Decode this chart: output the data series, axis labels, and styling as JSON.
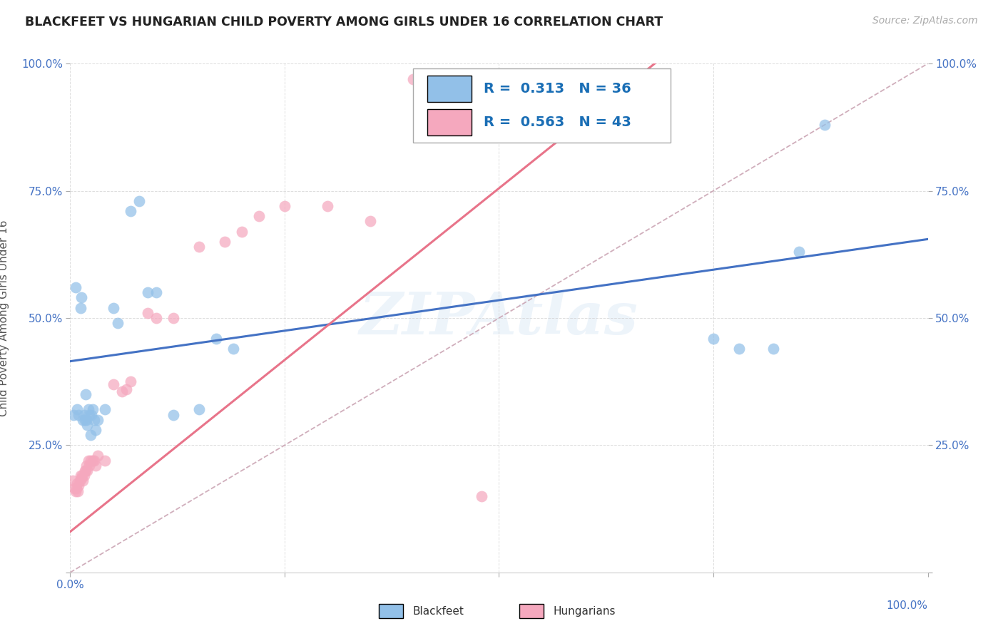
{
  "title": "BLACKFEET VS HUNGARIAN CHILD POVERTY AMONG GIRLS UNDER 16 CORRELATION CHART",
  "source": "Source: ZipAtlas.com",
  "ylabel": "Child Poverty Among Girls Under 16",
  "xlim": [
    0,
    1
  ],
  "ylim": [
    0,
    1
  ],
  "xticks": [
    0.0,
    0.25,
    0.5,
    0.75,
    1.0
  ],
  "yticks": [
    0.0,
    0.25,
    0.5,
    0.75,
    1.0
  ],
  "xtick_labels": [
    "0.0%",
    "",
    "",
    "",
    "100.0%"
  ],
  "ytick_labels": [
    "",
    "25.0%",
    "50.0%",
    "75.0%",
    "100.0%"
  ],
  "watermark": "ZIPAtlas",
  "blackfeet_R": "0.313",
  "blackfeet_N": "36",
  "hungarian_R": "0.563",
  "hungarian_N": "43",
  "blackfeet_color": "#92c0e8",
  "hungarian_color": "#f5a8be",
  "blackfeet_line_color": "#4472c4",
  "hungarian_line_color": "#e8748a",
  "ref_line_color": "#c8a0b0",
  "blackfeet_x": [
    0.004,
    0.006,
    0.008,
    0.01,
    0.012,
    0.013,
    0.015,
    0.016,
    0.017,
    0.018,
    0.019,
    0.02,
    0.021,
    0.022,
    0.024,
    0.025,
    0.026,
    0.028,
    0.03,
    0.032,
    0.04,
    0.05,
    0.055,
    0.07,
    0.08,
    0.09,
    0.1,
    0.12,
    0.15,
    0.17,
    0.19,
    0.75,
    0.78,
    0.82,
    0.85,
    0.88
  ],
  "blackfeet_y": [
    0.31,
    0.56,
    0.32,
    0.31,
    0.52,
    0.54,
    0.3,
    0.31,
    0.3,
    0.35,
    0.3,
    0.29,
    0.32,
    0.31,
    0.27,
    0.31,
    0.32,
    0.3,
    0.28,
    0.3,
    0.32,
    0.52,
    0.49,
    0.71,
    0.73,
    0.55,
    0.55,
    0.31,
    0.32,
    0.46,
    0.44,
    0.46,
    0.44,
    0.44,
    0.63,
    0.88
  ],
  "hungarian_x": [
    0.003,
    0.005,
    0.006,
    0.007,
    0.008,
    0.009,
    0.01,
    0.011,
    0.012,
    0.013,
    0.014,
    0.015,
    0.016,
    0.017,
    0.018,
    0.019,
    0.02,
    0.021,
    0.022,
    0.024,
    0.026,
    0.028,
    0.03,
    0.032,
    0.04,
    0.05,
    0.06,
    0.065,
    0.07,
    0.09,
    0.1,
    0.12,
    0.15,
    0.18,
    0.2,
    0.22,
    0.25,
    0.3,
    0.35,
    0.4,
    0.42,
    0.45,
    0.48
  ],
  "hungarian_y": [
    0.18,
    0.165,
    0.16,
    0.165,
    0.175,
    0.16,
    0.17,
    0.18,
    0.19,
    0.185,
    0.19,
    0.18,
    0.19,
    0.2,
    0.2,
    0.21,
    0.2,
    0.22,
    0.21,
    0.22,
    0.22,
    0.22,
    0.21,
    0.23,
    0.22,
    0.37,
    0.355,
    0.36,
    0.375,
    0.51,
    0.5,
    0.5,
    0.64,
    0.65,
    0.67,
    0.7,
    0.72,
    0.72,
    0.69,
    0.97,
    0.97,
    0.97,
    0.15
  ],
  "background_color": "#ffffff",
  "grid_color": "#cccccc",
  "title_color": "#222222",
  "legend_color": "#1a6eb5",
  "bf_line_intercept": 0.415,
  "bf_line_slope": 0.24,
  "hu_line_intercept": 0.08,
  "hu_line_slope": 1.35
}
